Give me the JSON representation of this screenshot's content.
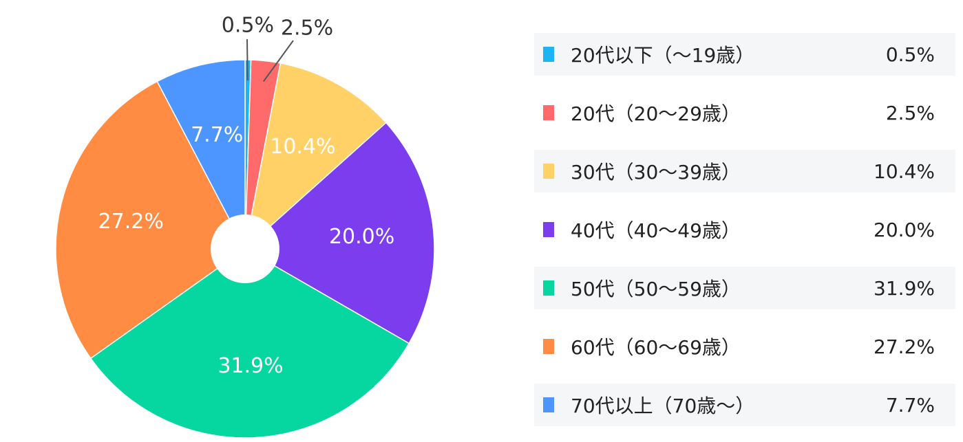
{
  "chart_data": {
    "type": "pie",
    "donut": true,
    "title": "",
    "categories": [
      "20代以下（～19歳）",
      "20代（20～29歳）",
      "30代（30～39歳）",
      "40代（40～49歳）",
      "50代（50～59歳）",
      "60代（60～69歳）",
      "70代以上（70歳～）"
    ],
    "values": [
      0.5,
      2.5,
      10.4,
      20.0,
      31.9,
      27.2,
      7.7
    ],
    "value_labels": [
      "0.5%",
      "2.5%",
      "10.4%",
      "20.0%",
      "31.9%",
      "27.2%",
      "7.7%"
    ],
    "colors": [
      "#1cb5f2",
      "#ff6b6b",
      "#ffd166",
      "#7b3ded",
      "#06d6a0",
      "#ff8c42",
      "#4d96ff"
    ],
    "start_angle": "top",
    "direction": "clockwise",
    "legend_position": "right"
  },
  "legend": {
    "items": [
      {
        "label": "20代以下（～19歳）",
        "value": "0.5%"
      },
      {
        "label": "20代（20～29歳）",
        "value": "2.5%"
      },
      {
        "label": "30代（30～39歳）",
        "value": "10.4%"
      },
      {
        "label": "40代（40～49歳）",
        "value": "20.0%"
      },
      {
        "label": "50代（50～59歳）",
        "value": "31.9%"
      },
      {
        "label": "60代（60～69歳）",
        "value": "27.2%"
      },
      {
        "label": "70代以上（70歳～）",
        "value": "7.7%"
      }
    ]
  }
}
